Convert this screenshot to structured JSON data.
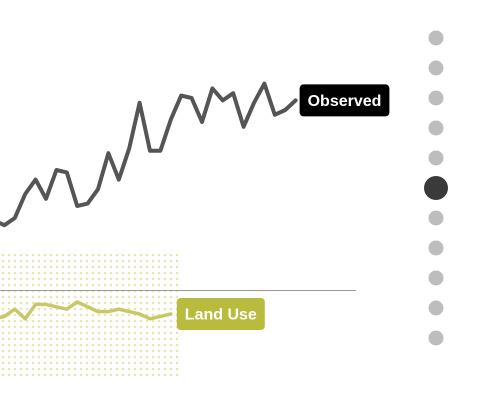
{
  "chart_data": {
    "type": "line",
    "title": "",
    "xlabel": "",
    "ylabel": "",
    "baseline": 0,
    "ylim": [
      -0.4,
      1.0
    ],
    "grid": false,
    "legend": "inline labels at series ends",
    "series": [
      {
        "name": "Observed",
        "color": "#555555",
        "label_bg": "#000000",
        "values": [
          0.29,
          0.27,
          0.3,
          0.4,
          0.46,
          0.38,
          0.5,
          0.49,
          0.35,
          0.36,
          0.42,
          0.57,
          0.46,
          0.59,
          0.78,
          0.58,
          0.58,
          0.71,
          0.81,
          0.8,
          0.7,
          0.84,
          0.79,
          0.82,
          0.68,
          0.78,
          0.86,
          0.73,
          0.75,
          0.79
        ]
      },
      {
        "name": "Land Use",
        "color": "#c8c869",
        "label_bg": "#b9bb3e",
        "values": [
          -0.12,
          -0.11,
          -0.08,
          -0.12,
          -0.06,
          -0.06,
          -0.07,
          -0.08,
          -0.05,
          -0.07,
          -0.09,
          -0.09,
          -0.08,
          -0.09,
          -0.1,
          -0.12,
          -0.11,
          -0.1
        ]
      }
    ]
  },
  "navigation": {
    "dots_count": 11,
    "active_index": 5,
    "dot_color": "#bdbdbd",
    "active_color": "#3a3a3a"
  },
  "texture": {
    "color": "#e6e6b4"
  }
}
